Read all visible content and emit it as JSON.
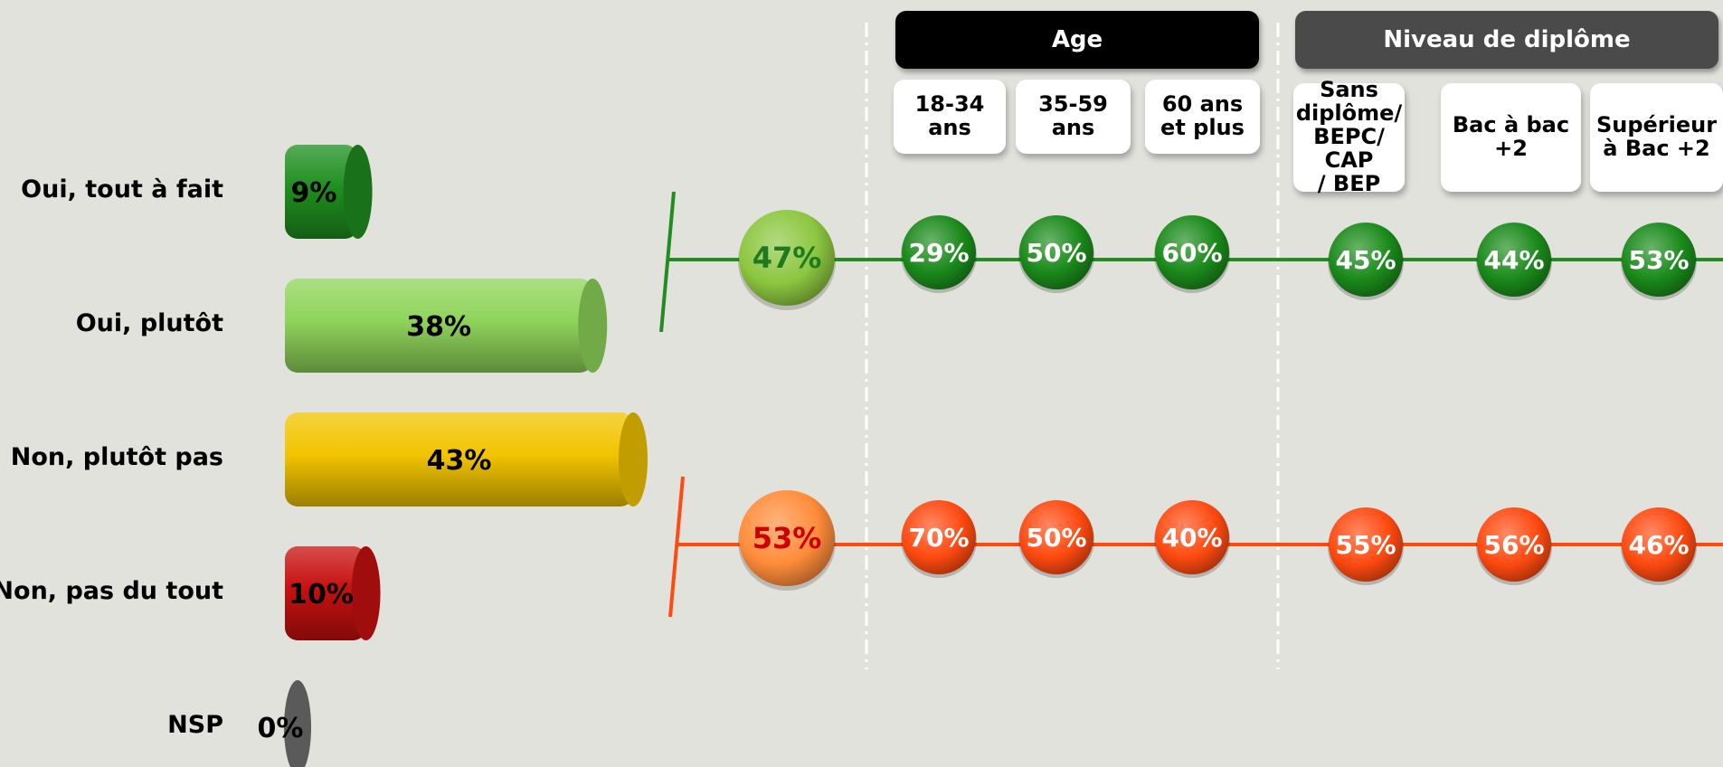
{
  "chart_data": [
    {
      "type": "bar",
      "categories": [
        "Oui, tout à fait",
        "Oui, plutôt",
        "Non, plutôt pas",
        "Non, pas du tout",
        "NSP"
      ],
      "values": [
        9,
        38,
        43,
        10,
        0
      ],
      "value_labels": [
        "9%",
        "38%",
        "43%",
        "10%",
        "0%"
      ],
      "colors": [
        "#1f8f1f",
        "#8fd45a",
        "#f2c400",
        "#c81010",
        "#5a5a5a"
      ],
      "orientation": "horizontal",
      "xlim": [
        0,
        43
      ]
    },
    {
      "type": "table",
      "row_totals": [
        {
          "value": 47,
          "label": "47%",
          "color": "#8cc63f",
          "text_color": "#1f7a1f"
        },
        {
          "value": 53,
          "label": "53%",
          "color": "#ff8c3a",
          "text_color": "#cc0000"
        }
      ],
      "groups": [
        {
          "title": "Age",
          "color": "#000000",
          "columns": [
            "18-34\nans",
            "35-59\nans",
            "60 ans\net plus"
          ]
        },
        {
          "title": "Niveau de diplôme",
          "color": "#4a4a4a",
          "columns": [
            "Sans\ndiplôme/\nBEPC/ CAP\n/ BEP",
            "Bac à bac\n+2",
            "Supérieur\nà Bac +2"
          ]
        }
      ],
      "series": [
        {
          "values": [
            29,
            50,
            60,
            45,
            44,
            53
          ],
          "labels": [
            "29%",
            "50%",
            "60%",
            "45%",
            "44%",
            "53%"
          ],
          "color": "#1a8a1a",
          "line_color": "#228b22"
        },
        {
          "values": [
            70,
            50,
            40,
            55,
            56,
            46
          ],
          "labels": [
            "70%",
            "50%",
            "40%",
            "55%",
            "56%",
            "46%"
          ],
          "color": "#ff4a10",
          "line_color": "#ff4a10"
        }
      ]
    }
  ]
}
